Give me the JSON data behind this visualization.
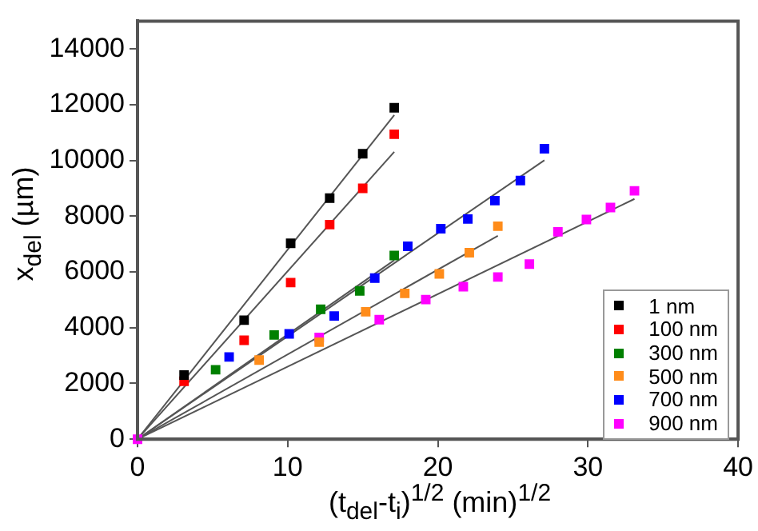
{
  "chart_data": {
    "type": "scatter",
    "xlabel": "(t$_{del}$-t$_{i}$)$^{1/2}$ (min)$^{1/2}$",
    "ylabel": "x$_{del}$ (µm)",
    "xlim": [
      0,
      40
    ],
    "xticks": [
      0,
      10,
      20,
      30,
      40
    ],
    "ylim": [
      0,
      15000
    ],
    "yticks": [
      0,
      2000,
      4000,
      6000,
      8000,
      10000,
      12000,
      14000
    ],
    "grid": false,
    "legend": "bottom right",
    "marker": "square",
    "series": [
      {
        "name": "1 nm",
        "color": "#000000",
        "x": [
          3.1,
          7.1,
          10.2,
          12.8,
          15.0,
          17.1
        ],
        "values": [
          2300,
          4270,
          7030,
          8650,
          10240,
          11890
        ]
      },
      {
        "name": "100 nm",
        "color": "#ff0000",
        "x": [
          3.1,
          7.1,
          10.2,
          12.8,
          15.0,
          17.1
        ],
        "values": [
          2080,
          3550,
          5620,
          7700,
          9000,
          10940
        ]
      },
      {
        "name": "300 nm",
        "color": "#008000",
        "x": [
          5.2,
          9.1,
          12.2,
          14.8,
          17.1
        ],
        "values": [
          2490,
          3740,
          4660,
          5320,
          6590
        ]
      },
      {
        "name": "500 nm",
        "color": "#ff8c1a",
        "x": [
          8.1,
          12.1,
          15.2,
          17.8,
          20.1,
          22.1,
          24.0
        ],
        "values": [
          2840,
          3480,
          4570,
          5230,
          5930,
          6690,
          7640
        ]
      },
      {
        "name": "700 nm",
        "color": "#0000ff",
        "x": [
          6.1,
          10.1,
          13.1,
          15.8,
          18.0,
          20.2,
          22.0,
          23.8,
          25.5,
          27.1
        ],
        "values": [
          2950,
          3780,
          4420,
          5780,
          6920,
          7550,
          7900,
          8560,
          9280,
          10420
        ]
      },
      {
        "name": "900 nm",
        "color": "#ff00ff",
        "x": [
          0,
          12.1,
          16.1,
          19.2,
          21.7,
          24.0,
          26.1,
          28.0,
          29.9,
          31.5,
          33.1
        ],
        "values": [
          0,
          3650,
          4290,
          5010,
          5470,
          5820,
          6280,
          7440,
          7880,
          8310,
          8910
        ]
      },
      {
        "type": "line",
        "color": "#555555",
        "marker": "none",
        "x": [
          0,
          17.1
        ],
        "values": [
          0,
          11630
        ]
      },
      {
        "type": "line",
        "color": "#555555",
        "marker": "none",
        "x": [
          0,
          17.1
        ],
        "values": [
          0,
          10310
        ]
      },
      {
        "type": "line",
        "color": "#555555",
        "marker": "none",
        "x": [
          0,
          17.1
        ],
        "values": [
          0,
          6420
        ]
      },
      {
        "type": "line",
        "color": "#555555",
        "marker": "none",
        "x": [
          0,
          24.0
        ],
        "values": [
          0,
          7300
        ]
      },
      {
        "type": "line",
        "color": "#555555",
        "marker": "none",
        "x": [
          0,
          27.1
        ],
        "values": [
          0,
          10010
        ]
      },
      {
        "type": "line",
        "color": "#555555",
        "marker": "none",
        "x": [
          0,
          33.1
        ],
        "values": [
          0,
          8620
        ]
      }
    ]
  }
}
